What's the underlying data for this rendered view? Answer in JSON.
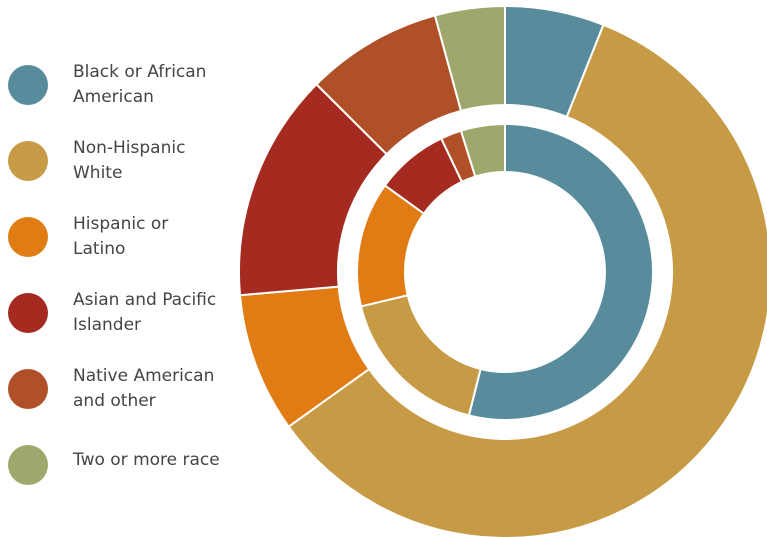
{
  "chart_data": {
    "type": "pie",
    "categories": [
      "Black or African\nAmerican",
      "Non-Hispanic\nWhite",
      "Hispanic or\nLatino",
      "Asian and Pacific\nIslander",
      "Native American\nand other",
      "Two or more race"
    ],
    "colors": [
      "#588c9c",
      "#c79a45",
      "#e07c13",
      "#a52a1f",
      "#b05028",
      "#a0a76c"
    ],
    "series": [
      {
        "values": [
          6.4,
          62.7,
          9.0,
          14.7,
          8.8,
          4.5
        ]
      },
      {
        "values": [
          42.6,
          13.7,
          10.8,
          6.3,
          1.8,
          3.8
        ]
      }
    ],
    "legend_position": "left"
  }
}
